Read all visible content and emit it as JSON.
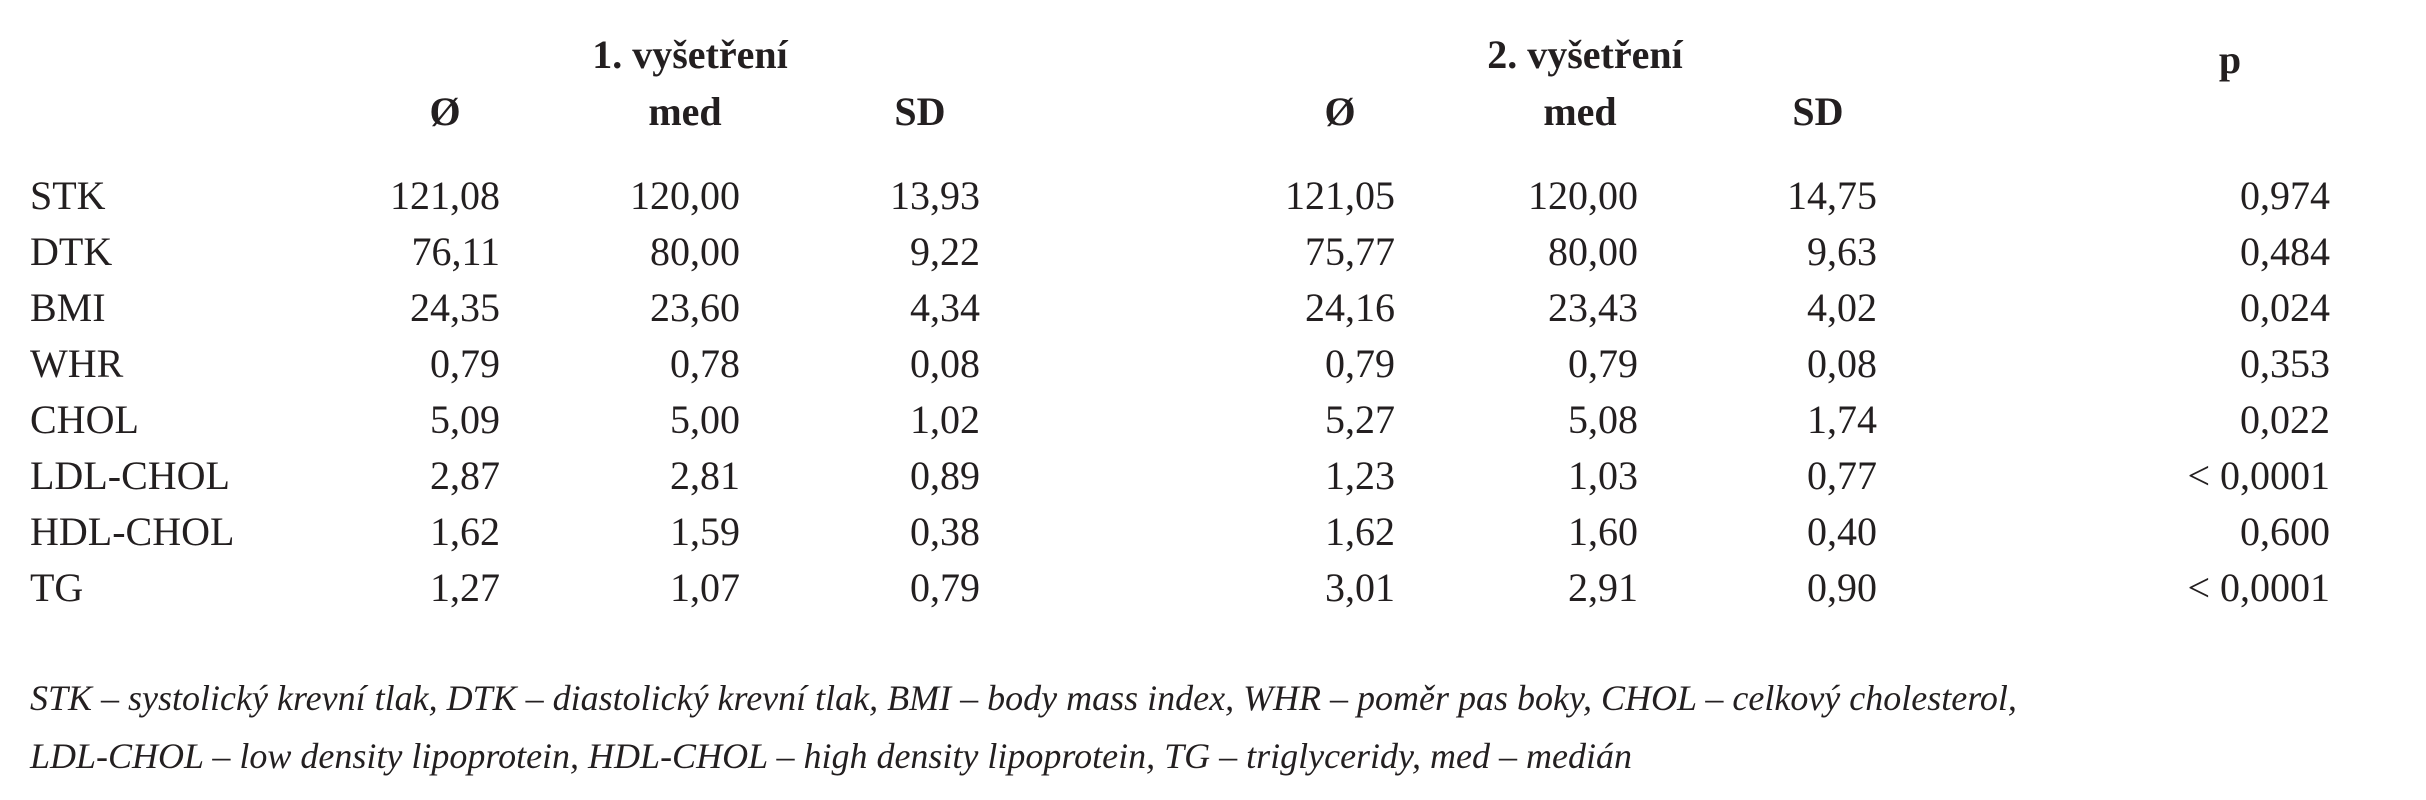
{
  "header": {
    "group1": "1. vyšetření",
    "group2": "2. vyšetření",
    "p": "p",
    "mean": "Ø",
    "median": "med",
    "sd": "SD"
  },
  "rows": [
    {
      "label": "STK",
      "v": [
        "121,08",
        "120,00",
        "13,93",
        "121,05",
        "120,00",
        "14,75",
        "0,974"
      ]
    },
    {
      "label": "DTK",
      "v": [
        "76,11",
        "80,00",
        "9,22",
        "75,77",
        "80,00",
        "9,63",
        "0,484"
      ]
    },
    {
      "label": "BMI",
      "v": [
        "24,35",
        "23,60",
        "4,34",
        "24,16",
        "23,43",
        "4,02",
        "0,024"
      ]
    },
    {
      "label": "WHR",
      "v": [
        "0,79",
        "0,78",
        "0,08",
        "0,79",
        "0,79",
        "0,08",
        "0,353"
      ]
    },
    {
      "label": "CHOL",
      "v": [
        "5,09",
        "5,00",
        "1,02",
        "5,27",
        "5,08",
        "1,74",
        "0,022"
      ]
    },
    {
      "label": "LDL-CHOL",
      "v": [
        "2,87",
        "2,81",
        "0,89",
        "1,23",
        "1,03",
        "0,77",
        "< 0,0001"
      ]
    },
    {
      "label": "HDL-CHOL",
      "v": [
        "1,62",
        "1,59",
        "0,38",
        "1,62",
        "1,60",
        "0,40",
        "0,600"
      ]
    },
    {
      "label": "TG",
      "v": [
        "1,27",
        "1,07",
        "0,79",
        "3,01",
        "2,91",
        "0,90",
        "< 0,0001"
      ]
    }
  ],
  "footnote": {
    "line1": "STK – systolický krevní tlak, DTK – diastolický krevní tlak, BMI – body mass index, WHR – poměr pas boky, CHOL – celkový cholesterol,",
    "line2": "LDL-CHOL – low density lipoprotein, HDL-CHOL – high density lipoprotein, TG – triglyceridy, med – medián"
  }
}
